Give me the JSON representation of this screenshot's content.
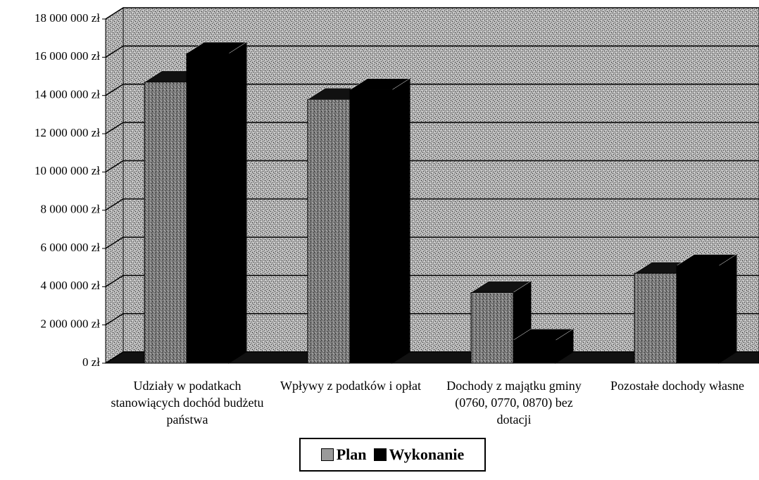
{
  "chart_data": {
    "type": "bar",
    "categories": [
      "Udziały w podatkach stanowiących dochód budżetu państwa",
      "Wpływy z podatków i opłat",
      "Dochody z majątku gminy (0760, 0770, 0870) bez dotacji",
      "Pozostałe dochody własne"
    ],
    "series": [
      {
        "name": "Plan",
        "color": "#8c8c8c",
        "values": [
          14700000,
          13800000,
          3700000,
          4700000
        ]
      },
      {
        "name": "Wykonanie",
        "color": "#000000",
        "values": [
          16200000,
          14300000,
          1200000,
          5100000
        ]
      }
    ],
    "ylim": [
      0,
      18000000
    ],
    "yticks": [
      {
        "value": 0,
        "label": "0 zł"
      },
      {
        "value": 2000000,
        "label": "2 000 000 zł"
      },
      {
        "value": 4000000,
        "label": "4 000 000 zł"
      },
      {
        "value": 6000000,
        "label": "6 000 000 zł"
      },
      {
        "value": 8000000,
        "label": "8 000 000 zł"
      },
      {
        "value": 10000000,
        "label": "10 000 000 zł"
      },
      {
        "value": 12000000,
        "label": "12 000 000 zł"
      },
      {
        "value": 14000000,
        "label": "14 000 000 zł"
      },
      {
        "value": 16000000,
        "label": "16 000 000 zł"
      },
      {
        "value": 18000000,
        "label": "18 000 000 zł"
      }
    ],
    "grid": true,
    "legend": "bottom"
  }
}
